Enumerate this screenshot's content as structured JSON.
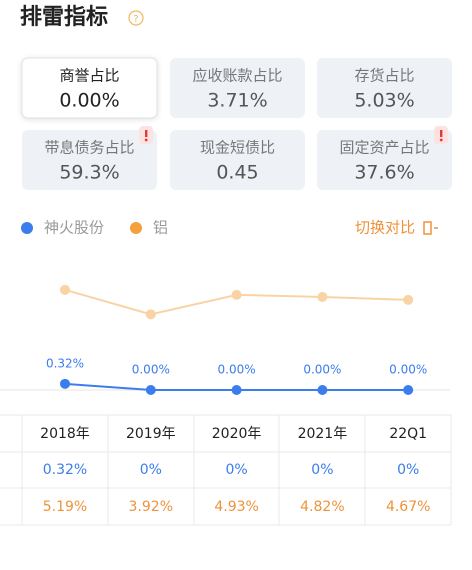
{
  "title": "排雷指标",
  "cards": [
    {
      "label": "商誉占比",
      "value": "0.00%",
      "selected": true,
      "warning": false
    },
    {
      "label": "应收账款占比",
      "value": "3.71%",
      "selected": false,
      "warning": false
    },
    {
      "label": "存货占比",
      "value": "5.03%",
      "selected": false,
      "warning": false
    },
    {
      "label": "带息债务占比",
      "value": "59.3%",
      "selected": false,
      "warning": true
    },
    {
      "label": "现金短债比",
      "value": "0.45",
      "selected": false,
      "warning": false
    },
    {
      "label": "固定资产占比",
      "value": "37.6%",
      "selected": false,
      "warning": true
    }
  ],
  "toggle": "切换对比",
  "chart": {
    "type": "line",
    "categories": [
      "2018年",
      "2019年",
      "2020年",
      "2021年",
      "22Q1"
    ],
    "series": [
      {
        "name": "神火股份",
        "color": "#3b7ded",
        "values": [
          0.32,
          0,
          0,
          0,
          0
        ],
        "value_labels": [
          "0.32%",
          "0.00%",
          "0.00%",
          "0.00%",
          "0.00%"
        ]
      },
      {
        "name": "铝",
        "color": "#f5a03c",
        "values": [
          5.19,
          3.92,
          4.93,
          4.82,
          4.67
        ]
      }
    ]
  },
  "table": {
    "rows": [
      [
        "0.32%",
        "0%",
        "0%",
        "0%",
        "0%"
      ],
      [
        "5.19%",
        "3.92%",
        "4.93%",
        "4.82%",
        "4.67%"
      ]
    ]
  }
}
